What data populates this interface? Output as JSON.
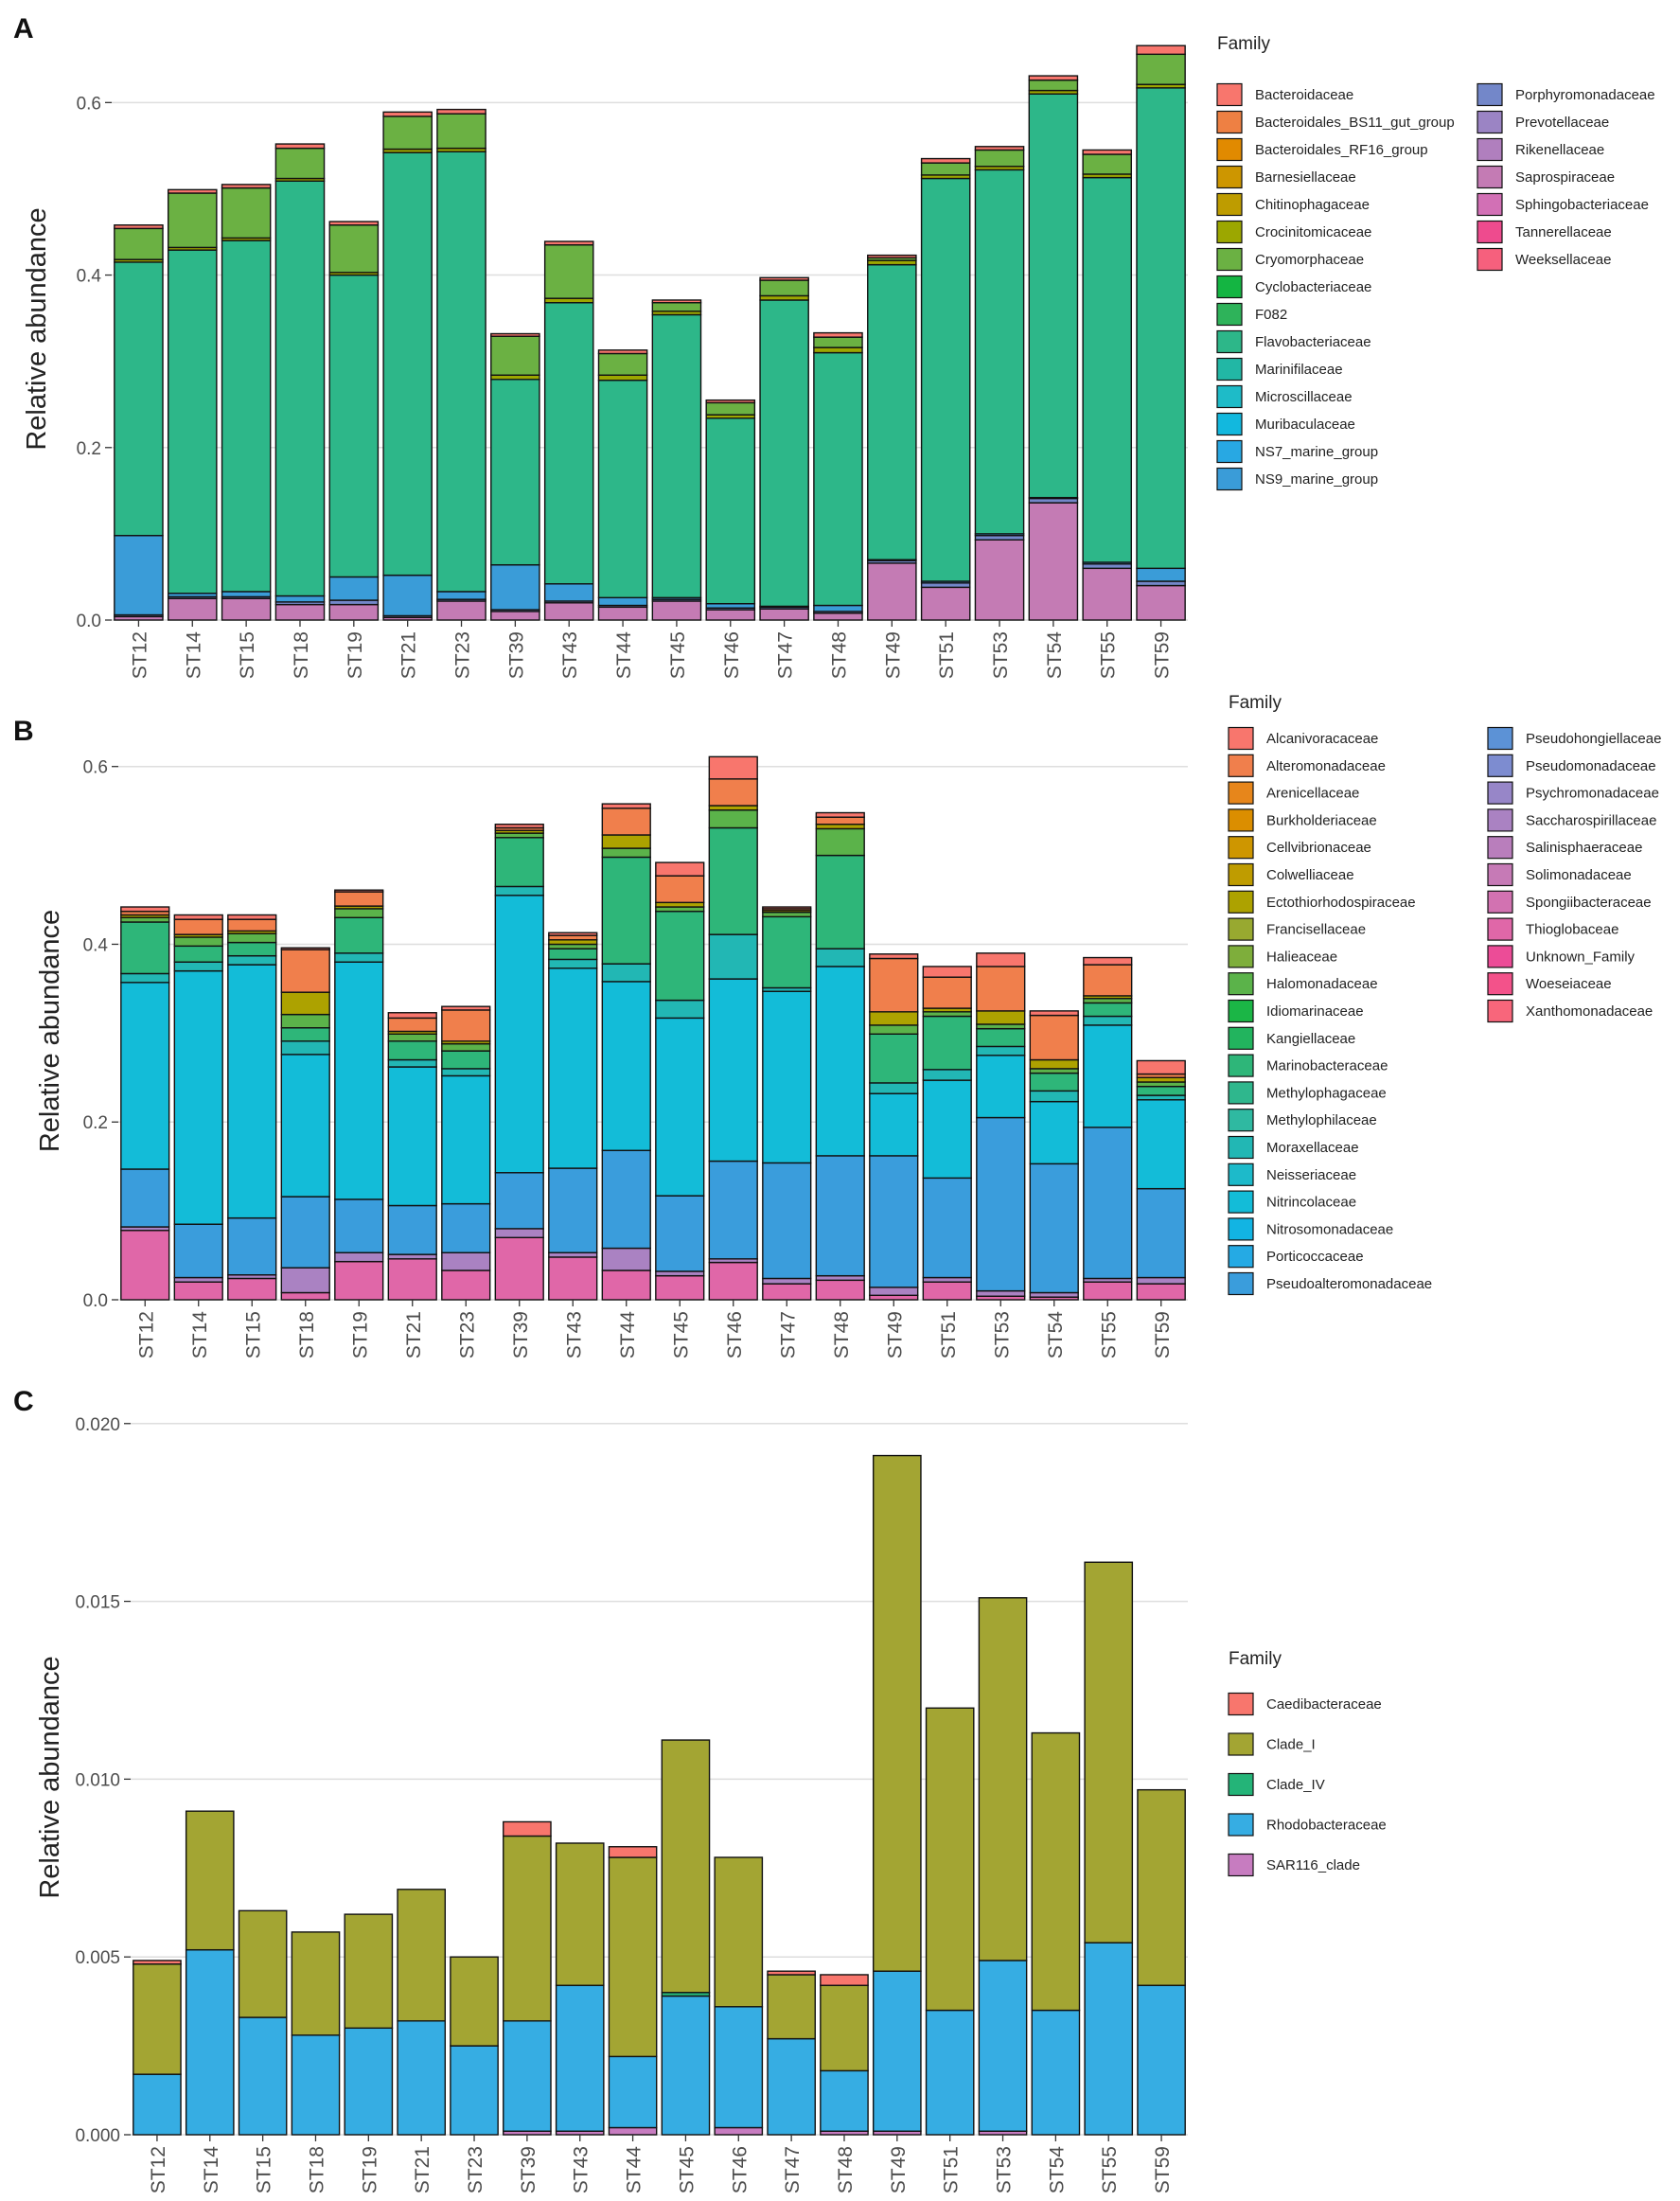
{
  "chart_data": [
    {
      "panel": "A",
      "type": "bar",
      "stacked": true,
      "ylabel": "Relative abundance",
      "ylim": [
        0,
        0.675
      ],
      "yticks": [
        0.0,
        0.2,
        0.4,
        0.6
      ],
      "ytick_labels": [
        "0.0",
        "0.2",
        "0.4",
        "0.6"
      ],
      "categories": [
        "ST12",
        "ST14",
        "ST15",
        "ST18",
        "ST19",
        "ST21",
        "ST23",
        "ST39",
        "ST43",
        "ST44",
        "ST45",
        "ST46",
        "ST47",
        "ST48",
        "ST49",
        "ST51",
        "ST53",
        "ST54",
        "ST55",
        "ST59"
      ],
      "legend_title": "Family",
      "legend": [
        {
          "name": "Bacteroidaceae",
          "color": "#F8766D"
        },
        {
          "name": "Bacteroidales_BS11_gut_group",
          "color": "#EE8043"
        },
        {
          "name": "Bacteroidales_RF16_group",
          "color": "#E18A00"
        },
        {
          "name": "Barnesiellaceae",
          "color": "#CD9600"
        },
        {
          "name": "Chitinophagaceae",
          "color": "#BE9C00"
        },
        {
          "name": "Crocinitomicaceae",
          "color": "#9CA700"
        },
        {
          "name": "Cryomorphaceae",
          "color": "#6BB143"
        },
        {
          "name": "Cyclobacteriaceae",
          "color": "#14B542"
        },
        {
          "name": "F082",
          "color": "#2EB35A"
        },
        {
          "name": "Flavobacteriaceae",
          "color": "#2DB789"
        },
        {
          "name": "Marinifilaceae",
          "color": "#22B7A5"
        },
        {
          "name": "Microscillaceae",
          "color": "#1EBBC8"
        },
        {
          "name": "Muribaculaceae",
          "color": "#12B8DE"
        },
        {
          "name": "NS7_marine_group",
          "color": "#28A8E3"
        },
        {
          "name": "NS9_marine_group",
          "color": "#3A9CD8"
        },
        {
          "name": "Porphyromonadaceae",
          "color": "#7387C9"
        },
        {
          "name": "Prevotellaceae",
          "color": "#9B84C4"
        },
        {
          "name": "Rikenellaceae",
          "color": "#B07FBE"
        },
        {
          "name": "Saprospiraceae",
          "color": "#C47BB4"
        },
        {
          "name": "Sphingobacteriaceae",
          "color": "#D270B5"
        },
        {
          "name": "Tannerellaceae",
          "color": "#EE4B8E"
        },
        {
          "name": "Weeksellaceae",
          "color": "#F6607D"
        }
      ],
      "series": [
        {
          "name": "Rikenellaceae",
          "color": "#C47BB4",
          "values": [
            0.004,
            0.025,
            0.025,
            0.018,
            0.018,
            0.003,
            0.022,
            0.01,
            0.02,
            0.015,
            0.022,
            0.012,
            0.013,
            0.008,
            0.066,
            0.038,
            0.093,
            0.136,
            0.06,
            0.04
          ]
        },
        {
          "name": "Porphyromonadaceae",
          "color": "#7387C9",
          "values": [
            0.002,
            0.002,
            0.002,
            0.003,
            0.005,
            0.002,
            0.002,
            0.002,
            0.002,
            0.002,
            0.002,
            0.002,
            0.002,
            0.002,
            0.003,
            0.005,
            0.005,
            0.005,
            0.005,
            0.005
          ]
        },
        {
          "name": "NS9_marine_group",
          "color": "#3A9CD8",
          "values": [
            0.092,
            0.004,
            0.006,
            0.007,
            0.027,
            0.047,
            0.009,
            0.052,
            0.02,
            0.009,
            0.002,
            0.005,
            0.001,
            0.007,
            0.001,
            0.002,
            0.002,
            0.001,
            0.002,
            0.015
          ]
        },
        {
          "name": "Flavobacteriaceae",
          "color": "#2DB789",
          "values": [
            0.317,
            0.398,
            0.407,
            0.481,
            0.35,
            0.49,
            0.51,
            0.215,
            0.326,
            0.252,
            0.328,
            0.215,
            0.355,
            0.293,
            0.342,
            0.467,
            0.422,
            0.468,
            0.446,
            0.557
          ]
        },
        {
          "name": "Crocinitomicaceae",
          "color": "#9CA700",
          "values": [
            0.003,
            0.003,
            0.003,
            0.003,
            0.003,
            0.004,
            0.004,
            0.005,
            0.005,
            0.006,
            0.004,
            0.004,
            0.005,
            0.006,
            0.005,
            0.004,
            0.004,
            0.004,
            0.004,
            0.004
          ]
        },
        {
          "name": "Cryomorphaceae",
          "color": "#6BB143",
          "values": [
            0.036,
            0.063,
            0.058,
            0.035,
            0.055,
            0.038,
            0.04,
            0.045,
            0.062,
            0.025,
            0.01,
            0.014,
            0.018,
            0.012,
            0.003,
            0.014,
            0.019,
            0.012,
            0.023,
            0.035
          ]
        },
        {
          "name": "Bacteroidaceae",
          "color": "#F8766D",
          "values": [
            0.004,
            0.004,
            0.004,
            0.005,
            0.004,
            0.005,
            0.005,
            0.003,
            0.004,
            0.004,
            0.003,
            0.003,
            0.003,
            0.005,
            0.003,
            0.005,
            0.004,
            0.005,
            0.005,
            0.01
          ]
        }
      ]
    },
    {
      "panel": "B",
      "type": "bar",
      "stacked": true,
      "ylabel": "Relative abundance",
      "ylim": [
        0,
        0.605
      ],
      "yticks": [
        0.0,
        0.2,
        0.4,
        0.6
      ],
      "ytick_labels": [
        "0.0",
        "0.2",
        "0.4",
        "0.6"
      ],
      "categories": [
        "ST12",
        "ST14",
        "ST15",
        "ST18",
        "ST19",
        "ST21",
        "ST23",
        "ST39",
        "ST43",
        "ST44",
        "ST45",
        "ST46",
        "ST47",
        "ST48",
        "ST49",
        "ST51",
        "ST53",
        "ST54",
        "ST55",
        "ST59"
      ],
      "legend_title": "Family",
      "legend": [
        {
          "name": "Alcanivoracaceae",
          "color": "#F8766D"
        },
        {
          "name": "Alteromonadaceae",
          "color": "#F07F4C"
        },
        {
          "name": "Arenicellaceae",
          "color": "#E7861B"
        },
        {
          "name": "Burkholderiaceae",
          "color": "#DB8E00"
        },
        {
          "name": "Cellvibrionaceae",
          "color": "#CE9600"
        },
        {
          "name": "Colwelliaceae",
          "color": "#BF9C00"
        },
        {
          "name": "Ectothiorhodospiraceae",
          "color": "#ADA200"
        },
        {
          "name": "Francisellaceae",
          "color": "#98A930"
        },
        {
          "name": "Halieaceae",
          "color": "#7EAE3B"
        },
        {
          "name": "Halomonadaceae",
          "color": "#5BB34A"
        },
        {
          "name": "Idiomarinaceae",
          "color": "#1BB646"
        },
        {
          "name": "Kangiellaceae",
          "color": "#22B45E"
        },
        {
          "name": "Marinobacteraceae",
          "color": "#2EB679"
        },
        {
          "name": "Methylophagaceae",
          "color": "#2FB78D"
        },
        {
          "name": "Methylophilaceae",
          "color": "#2FB9A1"
        },
        {
          "name": "Moraxellaceae",
          "color": "#22B7B4"
        },
        {
          "name": "Neisseriaceae",
          "color": "#1DBACA"
        },
        {
          "name": "Nitrincolaceae",
          "color": "#13BCD8"
        },
        {
          "name": "Nitrosomonadaceae",
          "color": "#12B4E3"
        },
        {
          "name": "Porticoccaceae",
          "color": "#25AAE4"
        },
        {
          "name": "Pseudoalteromonadaceae",
          "color": "#3A9DDC"
        },
        {
          "name": "Pseudohongiellaceae",
          "color": "#5C92D6"
        },
        {
          "name": "Pseudomonadaceae",
          "color": "#7D8CD0"
        },
        {
          "name": "Psychromonadaceae",
          "color": "#9786C8"
        },
        {
          "name": "Saccharospirillaceae",
          "color": "#AA82C2"
        },
        {
          "name": "Salinisphaeraceae",
          "color": "#B97EBC"
        },
        {
          "name": "Solimonadaceae",
          "color": "#C67AB6"
        },
        {
          "name": "Spongiibacteraceae",
          "color": "#D272B1"
        },
        {
          "name": "Thioglobaceae",
          "color": "#E067A8"
        },
        {
          "name": "Unknown_Family",
          "color": "#EC4C97"
        },
        {
          "name": "Woeseiaceae",
          "color": "#F3528A"
        },
        {
          "name": "Xanthomonadaceae",
          "color": "#F8667B"
        }
      ],
      "series": [
        {
          "name": "Thioglobaceae",
          "color": "#E067A8",
          "values": [
            0.078,
            0.02,
            0.024,
            0.008,
            0.043,
            0.046,
            0.033,
            0.07,
            0.048,
            0.033,
            0.027,
            0.042,
            0.018,
            0.022,
            0.005,
            0.02,
            0.004,
            0.003,
            0.02,
            0.018
          ]
        },
        {
          "name": "Saccharospirillaceae",
          "color": "#AA82C2",
          "values": [
            0.004,
            0.005,
            0.004,
            0.028,
            0.01,
            0.005,
            0.02,
            0.01,
            0.005,
            0.025,
            0.005,
            0.004,
            0.006,
            0.005,
            0.009,
            0.005,
            0.006,
            0.005,
            0.004,
            0.007
          ]
        },
        {
          "name": "Pseudoalteromonadaceae",
          "color": "#3A9DDC",
          "values": [
            0.065,
            0.06,
            0.064,
            0.08,
            0.06,
            0.055,
            0.055,
            0.063,
            0.095,
            0.11,
            0.085,
            0.11,
            0.13,
            0.135,
            0.148,
            0.112,
            0.195,
            0.145,
            0.17,
            0.1
          ]
        },
        {
          "name": "Nitrincolaceae",
          "color": "#13BCD8",
          "values": [
            0.21,
            0.285,
            0.285,
            0.16,
            0.267,
            0.156,
            0.144,
            0.312,
            0.225,
            0.19,
            0.2,
            0.205,
            0.193,
            0.213,
            0.07,
            0.11,
            0.07,
            0.07,
            0.115,
            0.1
          ]
        },
        {
          "name": "Moraxellaceae",
          "color": "#22B7B4",
          "values": [
            0.01,
            0.01,
            0.01,
            0.015,
            0.01,
            0.008,
            0.008,
            0.01,
            0.01,
            0.02,
            0.02,
            0.05,
            0.004,
            0.02,
            0.012,
            0.012,
            0.01,
            0.012,
            0.01,
            0.005
          ]
        },
        {
          "name": "Marinobacteraceae",
          "color": "#2EB679",
          "values": [
            0.058,
            0.018,
            0.015,
            0.015,
            0.04,
            0.021,
            0.02,
            0.055,
            0.012,
            0.12,
            0.1,
            0.12,
            0.08,
            0.105,
            0.055,
            0.06,
            0.02,
            0.02,
            0.015,
            0.01
          ]
        },
        {
          "name": "Halomonadaceae",
          "color": "#5BB34A",
          "values": [
            0.005,
            0.01,
            0.01,
            0.015,
            0.01,
            0.008,
            0.008,
            0.005,
            0.005,
            0.01,
            0.005,
            0.02,
            0.005,
            0.03,
            0.01,
            0.005,
            0.005,
            0.005,
            0.005,
            0.005
          ]
        },
        {
          "name": "Ectothiorhodospiraceae",
          "color": "#ADA200",
          "values": [
            0.003,
            0.003,
            0.003,
            0.025,
            0.003,
            0.003,
            0.003,
            0.003,
            0.005,
            0.015,
            0.005,
            0.005,
            0.002,
            0.005,
            0.015,
            0.004,
            0.015,
            0.01,
            0.003,
            0.005
          ]
        },
        {
          "name": "Alteromonadaceae",
          "color": "#F07F4C",
          "values": [
            0.004,
            0.017,
            0.013,
            0.048,
            0.016,
            0.015,
            0.035,
            0.003,
            0.005,
            0.03,
            0.03,
            0.03,
            0.002,
            0.008,
            0.06,
            0.035,
            0.05,
            0.05,
            0.035,
            0.004
          ]
        },
        {
          "name": "Alcanivoracaceae",
          "color": "#F8766D",
          "values": [
            0.005,
            0.005,
            0.005,
            0.002,
            0.002,
            0.006,
            0.004,
            0.004,
            0.003,
            0.005,
            0.015,
            0.025,
            0.002,
            0.005,
            0.005,
            0.012,
            0.015,
            0.005,
            0.008,
            0.015
          ]
        }
      ]
    },
    {
      "panel": "C",
      "type": "bar",
      "stacked": true,
      "ylabel": "Relative abundance",
      "ylim": [
        0,
        0.0201
      ],
      "yticks": [
        0.0,
        0.005,
        0.01,
        0.015,
        0.02
      ],
      "ytick_labels": [
        "0.000",
        "0.005",
        "0.010",
        "0.015",
        "0.020"
      ],
      "categories": [
        "ST12",
        "ST14",
        "ST15",
        "ST18",
        "ST19",
        "ST21",
        "ST23",
        "ST39",
        "ST43",
        "ST44",
        "ST45",
        "ST46",
        "ST47",
        "ST48",
        "ST49",
        "ST51",
        "ST53",
        "ST54",
        "ST55",
        "ST59"
      ],
      "legend_title": "Family",
      "legend": [
        {
          "name": "Caedibacteraceae",
          "color": "#F8766D"
        },
        {
          "name": "Clade_I",
          "color": "#A3A533"
        },
        {
          "name": "Clade_IV",
          "color": "#24B478"
        },
        {
          "name": "Rhodobacteraceae",
          "color": "#36ADE3"
        },
        {
          "name": "SAR116_clade",
          "color": "#C77CC0"
        }
      ],
      "series": [
        {
          "name": "SAR116_clade",
          "color": "#C77CC0",
          "values": [
            0,
            0,
            0,
            0,
            0,
            0,
            0,
            0.0001,
            0.0001,
            0.0002,
            0,
            0.0002,
            0,
            0.0001,
            0.0001,
            0,
            0.0001,
            0,
            0,
            0
          ]
        },
        {
          "name": "Rhodobacteraceae",
          "color": "#36ADE3",
          "values": [
            0.0017,
            0.0052,
            0.0033,
            0.0028,
            0.003,
            0.0032,
            0.0025,
            0.0031,
            0.0041,
            0.002,
            0.0039,
            0.0034,
            0.0027,
            0.0017,
            0.0045,
            0.0035,
            0.0048,
            0.0035,
            0.0054,
            0.0042
          ]
        },
        {
          "name": "Clade_IV",
          "color": "#24B478",
          "values": [
            0,
            0,
            0,
            0,
            0,
            0,
            0,
            0,
            0,
            0,
            0.0001,
            0,
            0,
            0,
            0,
            0,
            0,
            0,
            0,
            0
          ]
        },
        {
          "name": "Clade_I",
          "color": "#A3A533",
          "values": [
            0.0031,
            0.0039,
            0.003,
            0.0029,
            0.0032,
            0.0037,
            0.0025,
            0.0052,
            0.004,
            0.0056,
            0.0071,
            0.0042,
            0.0018,
            0.0024,
            0.0145,
            0.0085,
            0.0102,
            0.0078,
            0.0107,
            0.0055
          ]
        },
        {
          "name": "Caedibacteraceae",
          "color": "#F8766D",
          "values": [
            0.0001,
            0,
            0,
            0,
            0,
            0,
            0,
            0.0004,
            0,
            0.0003,
            0,
            0,
            0.0001,
            0.0003,
            0,
            0,
            0,
            0,
            0,
            0
          ]
        }
      ]
    }
  ]
}
